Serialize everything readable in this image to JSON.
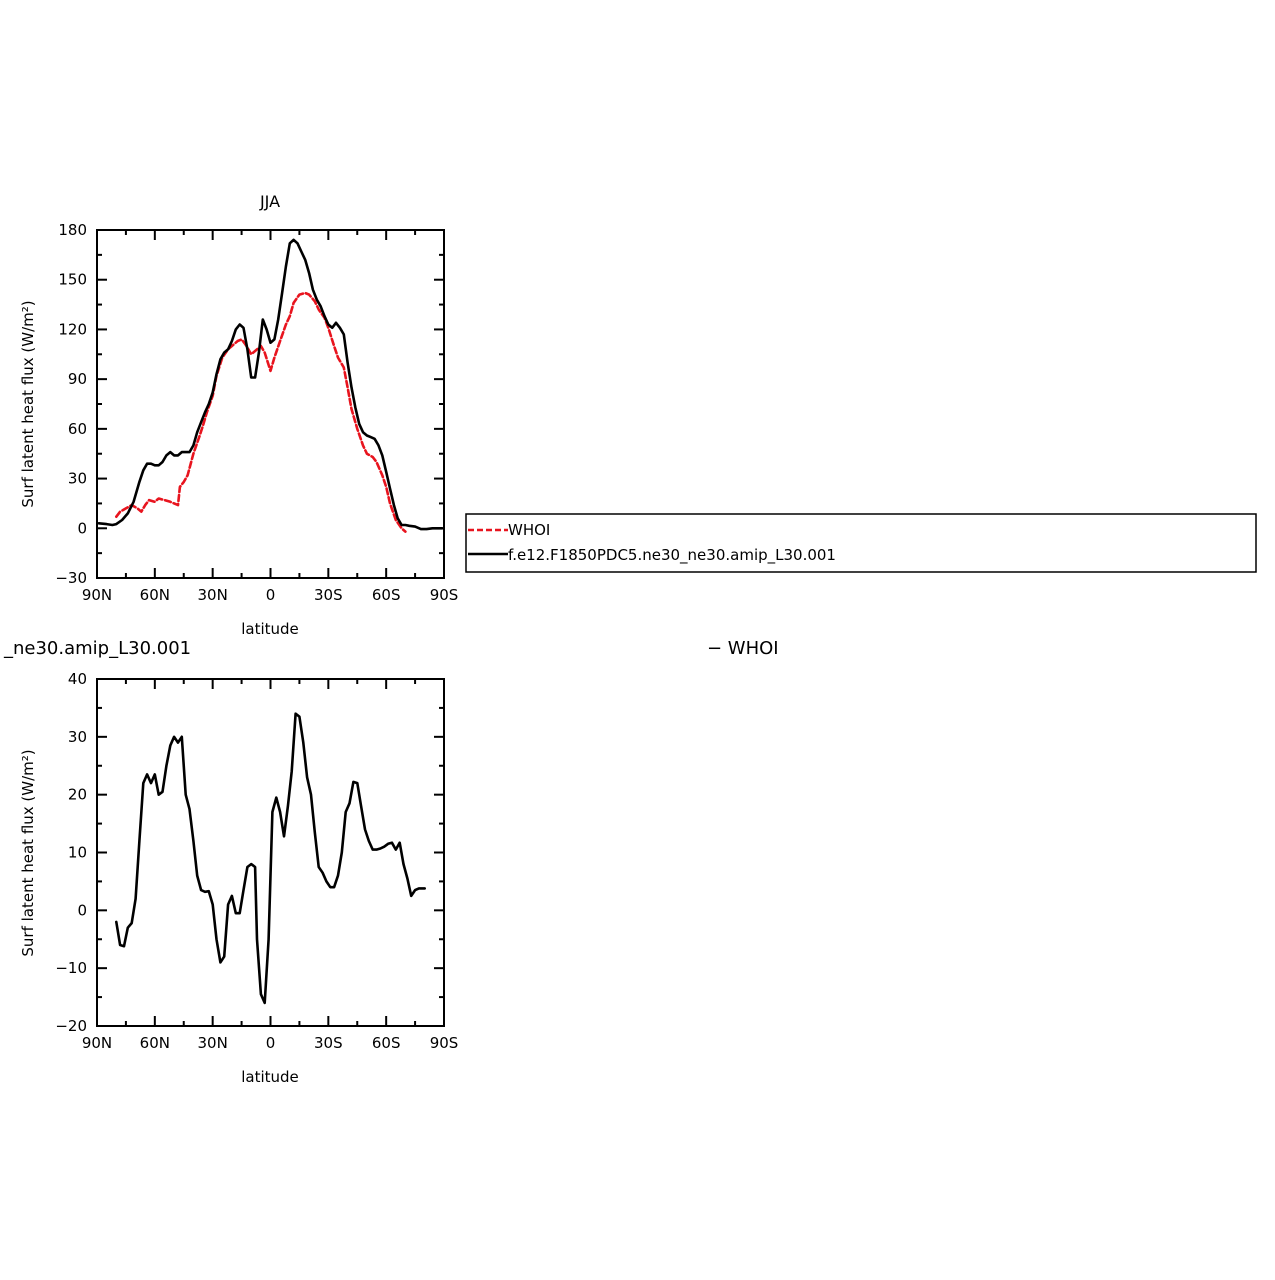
{
  "chart_data": [
    {
      "type": "line",
      "title": "JJA",
      "xlabel": "latitude",
      "ylabel": "Surf latent heat flux (W/m²)",
      "x_domain": [
        -90,
        90
      ],
      "ylim": [
        -30,
        180
      ],
      "xtick_values": [
        -90,
        -60,
        -30,
        0,
        30,
        60,
        90
      ],
      "xtick_labels": [
        "90N",
        "60N",
        "30N",
        "0",
        "30S",
        "60S",
        "90S"
      ],
      "ytick_values": [
        -30,
        0,
        30,
        60,
        90,
        120,
        150,
        180
      ],
      "ytick_labels": [
        "−30",
        "0",
        "30",
        "60",
        "90",
        "120",
        "150",
        "180"
      ],
      "grid": false,
      "legend": {
        "position": "right",
        "entries": [
          "WHOI",
          "f.e12.F1850PDC5.ne30_ne30.amip_L30.001"
        ]
      },
      "series": [
        {
          "name": "WHOI",
          "color": "#e8141e",
          "dash": true,
          "x": [
            -80,
            -78,
            -75,
            -72,
            -69,
            -67,
            -65,
            -63,
            -60,
            -58,
            -55,
            -52,
            -48,
            -47,
            -45,
            -43,
            -40,
            -37,
            -35,
            -33,
            -30,
            -28,
            -25,
            -22,
            -20,
            -17,
            -15,
            -13,
            -10,
            -8,
            -5,
            -3,
            0,
            2,
            5,
            8,
            10,
            12,
            15,
            18,
            20,
            23,
            25,
            28,
            30,
            33,
            35,
            38,
            40,
            42,
            45,
            48,
            50,
            53,
            55,
            58,
            60,
            62,
            65,
            68,
            70
          ],
          "y": [
            7,
            10,
            12,
            14,
            12,
            10,
            14,
            17,
            16,
            18,
            17,
            16,
            14,
            25,
            28,
            32,
            45,
            55,
            62,
            70,
            80,
            92,
            103,
            108,
            110,
            113,
            114,
            111,
            105,
            107,
            110,
            106,
            95,
            103,
            113,
            123,
            128,
            136,
            141,
            142,
            141,
            137,
            132,
            127,
            121,
            110,
            103,
            97,
            85,
            72,
            60,
            50,
            45,
            43,
            40,
            32,
            25,
            15,
            5,
            0,
            -2
          ]
        },
        {
          "name": "f.e12.F1850PDC5.ne30_ne30.amip_L30.001",
          "color": "#000000",
          "dash": false,
          "x": [
            -89,
            -85,
            -82,
            -80,
            -77,
            -74,
            -71,
            -68,
            -66,
            -64,
            -62,
            -60,
            -58,
            -56,
            -54,
            -52,
            -50,
            -48,
            -46,
            -44,
            -42,
            -40,
            -38,
            -36,
            -34,
            -32,
            -30,
            -28,
            -26,
            -24,
            -22,
            -20,
            -18,
            -16,
            -14,
            -12,
            -10,
            -8,
            -6,
            -4,
            -2,
            0,
            2,
            4,
            6,
            8,
            10,
            12,
            14,
            16,
            18,
            20,
            22,
            24,
            26,
            28,
            30,
            32,
            34,
            36,
            38,
            40,
            42,
            44,
            46,
            48,
            50,
            52,
            54,
            56,
            58,
            60,
            62,
            64,
            66,
            68,
            70,
            72,
            75,
            78,
            81,
            84,
            87,
            89
          ],
          "y": [
            3,
            2.5,
            2,
            2.5,
            5,
            9,
            16,
            28,
            35,
            39,
            39,
            38,
            38,
            40,
            44,
            46,
            44,
            44,
            46,
            46,
            46,
            50,
            58,
            64,
            70,
            75,
            82,
            93,
            102,
            106,
            108,
            113,
            120,
            123,
            121,
            108,
            91,
            91,
            106,
            126,
            120,
            112,
            114,
            126,
            142,
            158,
            172,
            174,
            172,
            167,
            162,
            154,
            144,
            138,
            134,
            128,
            123,
            121,
            124,
            121,
            117,
            100,
            85,
            73,
            63,
            58,
            56,
            55,
            54,
            50,
            44,
            34,
            24,
            14,
            6,
            2,
            2,
            1.5,
            1,
            -0.5,
            -0.5,
            0,
            0,
            0
          ]
        }
      ]
    },
    {
      "type": "line",
      "title_left": "_ne30.amip_L30.001",
      "title_right": "− WHOI",
      "xlabel": "latitude",
      "ylabel": "Surf latent heat flux (W/m²)",
      "x_domain": [
        -90,
        90
      ],
      "ylim": [
        -20,
        40
      ],
      "xtick_values": [
        -90,
        -60,
        -30,
        0,
        30,
        60,
        90
      ],
      "xtick_labels": [
        "90N",
        "60N",
        "30N",
        "0",
        "30S",
        "60S",
        "90S"
      ],
      "ytick_values": [
        -20,
        -10,
        0,
        10,
        20,
        30,
        40
      ],
      "ytick_labels": [
        "−20",
        "−10",
        "0",
        "10",
        "20",
        "30",
        "40"
      ],
      "grid": false,
      "series": [
        {
          "color": "#000000",
          "dash": false,
          "x": [
            -80,
            -78,
            -76,
            -74,
            -72,
            -70,
            -68,
            -66,
            -64,
            -62,
            -60,
            -58,
            -56,
            -54,
            -52,
            -50,
            -48,
            -46,
            -44,
            -42,
            -40,
            -38,
            -36,
            -34,
            -32,
            -30,
            -28,
            -26,
            -24,
            -22,
            -20,
            -18,
            -16,
            -14,
            -12,
            -10,
            -8,
            -7,
            -5,
            -3,
            -1,
            1,
            3,
            5,
            7,
            9,
            11,
            13,
            15,
            17,
            19,
            21,
            23,
            25,
            27,
            29,
            31,
            33,
            35,
            37,
            39,
            41,
            43,
            45,
            47,
            49,
            51,
            53,
            55,
            57,
            59,
            61,
            63,
            65,
            67,
            69,
            71
          ],
          "y": [
            -2,
            -6,
            -6.2,
            -3,
            -2.2,
            2,
            12,
            22,
            23.5,
            22,
            23.5,
            20,
            20.5,
            25,
            28.5,
            30,
            29,
            30,
            20,
            17.5,
            12,
            6,
            3.5,
            3.2,
            3.3,
            1,
            -5,
            -9,
            -8,
            1,
            2.5,
            -0.5,
            -0.5,
            3.5,
            7.5,
            8,
            7.5,
            -5,
            -14.5,
            -16,
            -5,
            17,
            19.5,
            17,
            12.8,
            18,
            24,
            34,
            33.5,
            29,
            23,
            20,
            13.5,
            7.5,
            6.5,
            5,
            4,
            4,
            6,
            10,
            17,
            18.5,
            22.2,
            22,
            18,
            14,
            12,
            10.5,
            10.5,
            10.7,
            11,
            11.5,
            11.7,
            10.5,
            11.7,
            8,
            5.5
          ],
          "x_tail": [
            71,
            73,
            75,
            77,
            80
          ],
          "y_tail": [
            5.5,
            2.5,
            3.5,
            3.8,
            3.8
          ]
        }
      ]
    }
  ]
}
